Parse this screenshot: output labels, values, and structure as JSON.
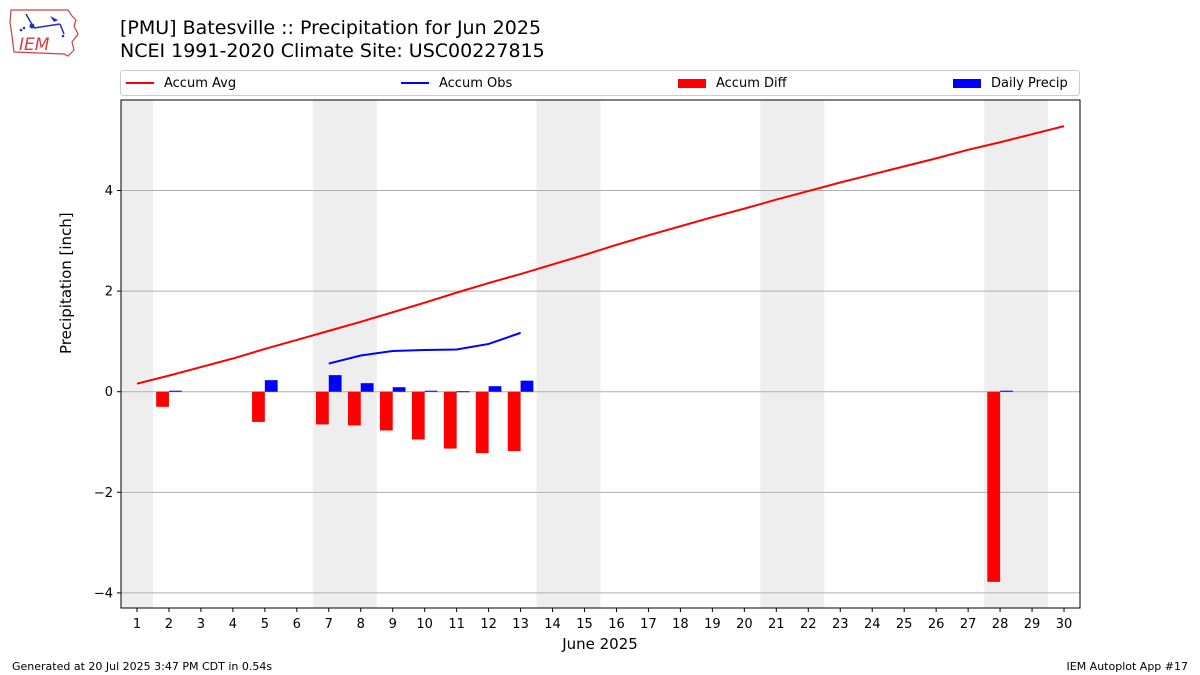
{
  "header": {
    "logo_text": "IEM",
    "title_line1": "[PMU] Batesville :: Precipitation for Jun 2025",
    "title_line2": "NCEI 1991-2020 Climate Site: USC00227815"
  },
  "footer": {
    "generated": "Generated at 20 Jul 2025 3:47 PM CDT in 0.54s",
    "app": "IEM Autoplot App #17"
  },
  "colors": {
    "accum_avg": "#ff0000",
    "accum_obs": "#0000ff",
    "accum_diff": "#ff0000",
    "daily_precip": "#0000ff",
    "weekend_shade": "#eeeeee",
    "grid": "#b0b0b0"
  },
  "chart_data": {
    "type": "bar",
    "title": "[PMU] Batesville :: Precipitation for Jun 2025",
    "xlabel": "June 2025",
    "ylabel": "Precipitation [inch]",
    "xlim": [
      0.5,
      30.5
    ],
    "ylim": [
      -4.3,
      5.8
    ],
    "yticks": [
      -4,
      -2,
      0,
      2,
      4
    ],
    "ytick_labels": [
      "−4",
      "−2",
      "0",
      "2",
      "4"
    ],
    "x": [
      1,
      2,
      3,
      4,
      5,
      6,
      7,
      8,
      9,
      10,
      11,
      12,
      13,
      14,
      15,
      16,
      17,
      18,
      19,
      20,
      21,
      22,
      23,
      24,
      25,
      26,
      27,
      28,
      29,
      30
    ],
    "grid": "horizontal",
    "legend_placement": "top",
    "weekend_spans": [
      [
        0.5,
        1.5
      ],
      [
        6.5,
        8.5
      ],
      [
        13.5,
        15.5
      ],
      [
        20.5,
        22.5
      ],
      [
        27.5,
        29.5
      ]
    ],
    "series": [
      {
        "name": "Accum Avg",
        "kind": "line",
        "x": [
          1,
          2,
          3,
          4,
          5,
          6,
          7,
          8,
          9,
          10,
          11,
          12,
          13,
          14,
          15,
          16,
          17,
          18,
          19,
          20,
          21,
          22,
          23,
          24,
          25,
          26,
          27,
          28,
          29,
          30
        ],
        "values": [
          0.16,
          0.32,
          0.49,
          0.66,
          0.85,
          1.03,
          1.21,
          1.39,
          1.58,
          1.77,
          1.97,
          2.16,
          2.34,
          2.53,
          2.72,
          2.92,
          3.11,
          3.29,
          3.47,
          3.64,
          3.82,
          3.99,
          4.16,
          4.32,
          4.48,
          4.64,
          4.81,
          4.96,
          5.12,
          5.28
        ]
      },
      {
        "name": "Accum Obs",
        "kind": "line",
        "x": [
          7,
          8,
          9,
          10,
          11,
          12,
          13
        ],
        "values": [
          0.56,
          0.72,
          0.81,
          0.83,
          0.84,
          0.95,
          1.17
        ]
      },
      {
        "name": "Accum Diff",
        "kind": "bar",
        "x": [
          2,
          5,
          7,
          8,
          9,
          10,
          11,
          12,
          13,
          28
        ],
        "values": [
          -0.3,
          -0.6,
          -0.65,
          -0.67,
          -0.77,
          -0.95,
          -1.13,
          -1.22,
          -1.18,
          -3.78
        ]
      },
      {
        "name": "Daily Precip",
        "kind": "bar",
        "x": [
          2,
          5,
          7,
          8,
          9,
          10,
          11,
          12,
          13,
          28
        ],
        "values": [
          0.02,
          0.23,
          0.33,
          0.17,
          0.09,
          0.02,
          0.01,
          0.11,
          0.22,
          0.02
        ]
      }
    ]
  }
}
